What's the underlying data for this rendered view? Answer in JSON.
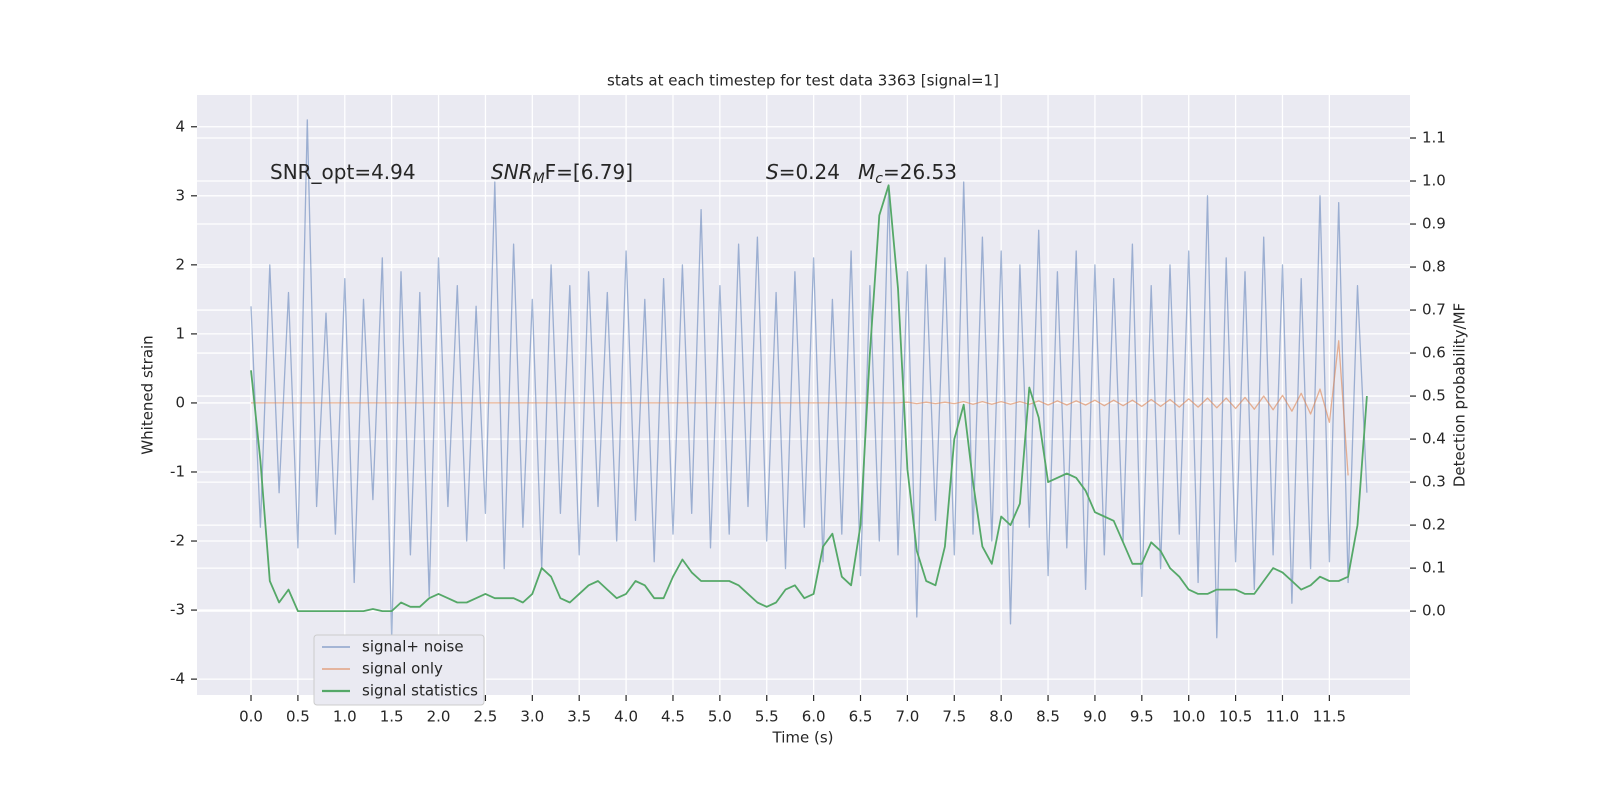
{
  "chart_data": {
    "type": "line",
    "title": "stats at each timestep for test data 3363 [signal=1]",
    "xlabel": "Time (s)",
    "ylabel": "Whitened strain",
    "y2label": "Detection probability/MF",
    "grid": true,
    "legend": "lower left",
    "xlim": [
      -0.576,
      12.36
    ],
    "ylim": [
      -4.23,
      4.46
    ],
    "y2lim": [
      -0.195,
      1.2
    ],
    "xticks": [
      {
        "value": 0,
        "label": "0.0"
      },
      0.5,
      {
        "value": 1,
        "label": "1.0"
      },
      1.5,
      {
        "value": 2,
        "label": "2.0"
      },
      2.5,
      {
        "value": 3,
        "label": "3.0"
      },
      3.5,
      {
        "value": 4,
        "label": "4.0"
      },
      4.5,
      {
        "value": 5,
        "label": "5.0"
      },
      5.5,
      {
        "value": 6,
        "label": "6.0"
      },
      6.5,
      {
        "value": 7,
        "label": "7.0"
      },
      7.5,
      {
        "value": 8,
        "label": "8.0"
      },
      8.5,
      {
        "value": 9,
        "label": "9.0"
      },
      9.5,
      {
        "value": 10,
        "label": "10.0"
      },
      10.5,
      {
        "value": 11,
        "label": "11.0"
      },
      11.5
    ],
    "yticks": [
      -4,
      -3,
      -2,
      -1,
      0,
      1,
      2,
      3,
      4
    ],
    "y2ticks": [
      {
        "value": 0,
        "label": "0.0"
      },
      0.1,
      0.2,
      0.3,
      0.4,
      0.5,
      0.6,
      0.7,
      0.8,
      0.9,
      {
        "value": 1,
        "label": "1.0"
      },
      1.1
    ],
    "annotations": [
      [
        "SNR_opt=4.94"
      ],
      [
        "SNR",
        "M",
        "F=[6.79]"
      ],
      [
        "S",
        "=0.24"
      ],
      [
        "M",
        "c",
        "=26.53"
      ]
    ],
    "x": [
      0.0,
      0.1,
      0.2,
      0.3,
      0.4,
      0.5,
      0.6,
      0.7,
      0.8,
      0.9,
      1.0,
      1.1,
      1.2,
      1.3,
      1.4,
      1.5,
      1.6,
      1.7,
      1.8,
      1.9,
      2.0,
      2.1,
      2.2,
      2.3,
      2.4,
      2.5,
      2.6,
      2.7,
      2.8,
      2.9,
      3.0,
      3.1,
      3.2,
      3.3,
      3.4,
      3.5,
      3.6,
      3.7,
      3.8,
      3.9,
      4.0,
      4.1,
      4.2,
      4.3,
      4.4,
      4.5,
      4.6,
      4.7,
      4.8,
      4.9,
      5.0,
      5.1,
      5.2,
      5.3,
      5.4,
      5.5,
      5.6,
      5.7,
      5.8,
      5.9,
      6.0,
      6.1,
      6.2,
      6.3,
      6.4,
      6.5,
      6.6,
      6.7,
      6.8,
      6.9,
      7.0,
      7.1,
      7.2,
      7.3,
      7.4,
      7.5,
      7.6,
      7.7,
      7.8,
      7.9,
      8.0,
      8.1,
      8.2,
      8.3,
      8.4,
      8.5,
      8.6,
      8.7,
      8.8,
      8.9,
      9.0,
      9.1,
      9.2,
      9.3,
      9.4,
      9.5,
      9.6,
      9.7,
      9.8,
      9.9,
      10.0,
      10.1,
      10.2,
      10.3,
      10.4,
      10.5,
      10.6,
      10.7,
      10.8,
      10.9,
      11.0,
      11.1,
      11.2,
      11.3,
      11.4,
      11.5,
      11.6,
      11.7,
      11.8,
      11.9
    ],
    "series": [
      {
        "name": "signal+ noise",
        "color": "#4c72b0",
        "values": [
          1.4,
          -1.8,
          2.0,
          -1.3,
          1.6,
          -2.1,
          4.1,
          -1.5,
          1.3,
          -1.9,
          1.8,
          -2.6,
          1.5,
          -1.4,
          2.1,
          -3.4,
          1.9,
          -2.2,
          1.6,
          -2.8,
          2.1,
          -1.5,
          1.7,
          -2.0,
          1.4,
          -1.6,
          3.2,
          -2.4,
          2.3,
          -1.8,
          1.5,
          -2.4,
          2.0,
          -1.6,
          1.7,
          -2.2,
          1.9,
          -1.5,
          1.6,
          -2.0,
          2.2,
          -1.7,
          1.5,
          -2.3,
          1.8,
          -1.9,
          2.0,
          -1.6,
          2.8,
          -2.1,
          1.7,
          -1.9,
          2.3,
          -1.5,
          2.4,
          -2.0,
          1.6,
          -2.4,
          1.9,
          -1.8,
          2.1,
          -2.3,
          1.5,
          -1.9,
          2.2,
          -2.5,
          1.7,
          -2.0,
          3.1,
          -2.2,
          1.9,
          -3.1,
          2.0,
          -1.7,
          2.1,
          -2.2,
          3.2,
          -1.9,
          2.4,
          -2.0,
          2.2,
          -3.2,
          2.0,
          -1.8,
          2.5,
          -2.5,
          1.9,
          -2.1,
          2.2,
          -2.7,
          2.0,
          -2.2,
          1.8,
          -2.0,
          2.3,
          -2.8,
          1.7,
          -2.4,
          2.0,
          -1.9,
          2.2,
          -2.6,
          3.0,
          -3.4,
          2.1,
          -2.3,
          1.9,
          -2.7,
          2.4,
          -2.2,
          2.0,
          -2.9,
          1.8,
          -2.4,
          3.0,
          -2.3,
          2.9,
          -2.6,
          1.7,
          -1.3
        ]
      },
      {
        "name": "signal only",
        "color": "#dd8452",
        "values": [
          0,
          0,
          0,
          0,
          0,
          0,
          0,
          0,
          0,
          0,
          0,
          0,
          0,
          0,
          0,
          0,
          0,
          0,
          0,
          0,
          0,
          0,
          0,
          0,
          0,
          0,
          0,
          0,
          0,
          0,
          0,
          0,
          0,
          0,
          0,
          0,
          0,
          0,
          0,
          0,
          0,
          0,
          0,
          0,
          0,
          0,
          0,
          0,
          0,
          0,
          0,
          0,
          0,
          0,
          0,
          0,
          0,
          0,
          0,
          0,
          0,
          0,
          0,
          0,
          0,
          0,
          0,
          0,
          0,
          0,
          0.01,
          -0.01,
          0.01,
          -0.01,
          0.01,
          -0.01,
          0.02,
          -0.02,
          0.02,
          -0.02,
          0.02,
          -0.02,
          0.02,
          -0.02,
          0.03,
          -0.03,
          0.03,
          -0.03,
          0.03,
          -0.03,
          0.04,
          -0.04,
          0.04,
          -0.04,
          0.04,
          -0.05,
          0.05,
          -0.05,
          0.05,
          -0.06,
          0.06,
          -0.06,
          0.07,
          -0.07,
          0.07,
          -0.08,
          0.08,
          -0.09,
          0.1,
          -0.1,
          0.11,
          -0.12,
          0.14,
          -0.16,
          0.2,
          -0.28,
          0.9,
          -1.05,
          null,
          null
        ]
      },
      {
        "name": "signal statistics",
        "color": "#55a868",
        "axis": "y2",
        "values": [
          0.56,
          0.35,
          0.07,
          0.02,
          0.05,
          0.0,
          0.0,
          0.0,
          0.0,
          0.0,
          0.0,
          0.0,
          0.0,
          0.005,
          0.0,
          0.0,
          0.02,
          0.01,
          0.01,
          0.03,
          0.04,
          0.03,
          0.02,
          0.02,
          0.03,
          0.04,
          0.03,
          0.03,
          0.03,
          0.02,
          0.04,
          0.1,
          0.08,
          0.03,
          0.02,
          0.04,
          0.06,
          0.07,
          0.05,
          0.03,
          0.04,
          0.07,
          0.06,
          0.03,
          0.03,
          0.08,
          0.12,
          0.09,
          0.07,
          0.07,
          0.07,
          0.07,
          0.06,
          0.04,
          0.02,
          0.01,
          0.02,
          0.05,
          0.06,
          0.03,
          0.04,
          0.15,
          0.18,
          0.08,
          0.06,
          0.2,
          0.6,
          0.92,
          0.99,
          0.75,
          0.33,
          0.14,
          0.07,
          0.06,
          0.15,
          0.4,
          0.48,
          0.3,
          0.15,
          0.11,
          0.22,
          0.2,
          0.25,
          0.52,
          0.45,
          0.3,
          0.31,
          0.32,
          0.31,
          0.28,
          0.23,
          0.22,
          0.21,
          0.16,
          0.11,
          0.11,
          0.16,
          0.14,
          0.1,
          0.08,
          0.05,
          0.04,
          0.04,
          0.05,
          0.05,
          0.05,
          0.04,
          0.04,
          0.07,
          0.1,
          0.09,
          0.07,
          0.05,
          0.06,
          0.08,
          0.07,
          0.07,
          0.08,
          0.2,
          0.5
        ]
      }
    ]
  }
}
